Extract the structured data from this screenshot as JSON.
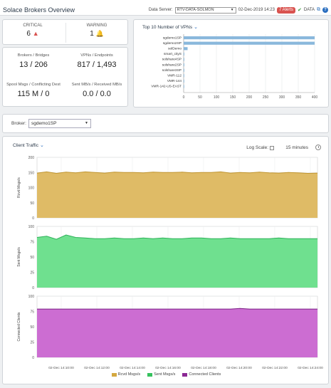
{
  "header": {
    "title": "Solace Brokers Overview",
    "data_server_label": "Data Server:",
    "data_server_value": "RTV-DATA-SOLMON",
    "timestamp": "02-Dec-2019 14:23",
    "alerts": "7 Alerts",
    "data_label": "DATA",
    "help": "?"
  },
  "alerts_panel": {
    "critical_label": "CRITICAL",
    "critical_value": "6",
    "warning_label": "WARNING",
    "warning_value": "1"
  },
  "stats": {
    "brokers_label": "Brokers / Bridges",
    "brokers_value": "13 / 206",
    "vpns_label": "VPNs / Endpoints",
    "vpns_value": "817 / 1,493",
    "spool_label": "Spool Msgs / Conflicting Dest",
    "spool_value": "115 M / 0",
    "sent_label": "Sent MB/s / Received MB/s",
    "sent_value": "0.0 / 0.0"
  },
  "vpn_panel": {
    "title": "Top 10 Number of VPNs"
  },
  "broker": {
    "label": "Broker:",
    "value": "sgdemo1SP"
  },
  "traffic": {
    "title": "Client Traffic",
    "log_scale_label": "Log Scale:",
    "time_range": "15 minutes"
  },
  "chart_data": [
    {
      "type": "bar",
      "orientation": "horizontal",
      "title": "Top 10 Number of VPNs",
      "categories": [
        "sgdemo1SP",
        "sgdemo2SP",
        "solDemo",
        "smart_cityS",
        "solshare4SP",
        "solshare2SP",
        "solshare3SP",
        "VMR-112",
        "VMR-144",
        "VMR-142-US-EAST"
      ],
      "values": [
        400,
        400,
        12,
        2,
        2,
        2,
        2,
        1,
        1,
        1
      ],
      "xlim": [
        0,
        400
      ],
      "xticks": [
        "0",
        "50",
        "100",
        "150",
        "200",
        "250",
        "300",
        "350",
        "400"
      ],
      "color": "#8ab8dc",
      "grid": true
    },
    {
      "type": "area",
      "ylabel": "Rcvd Msgs/s",
      "ylim": [
        0,
        200
      ],
      "yticks": [
        "200",
        "150",
        "100",
        "50",
        "0"
      ],
      "values": [
        148,
        152,
        147,
        151,
        149,
        152,
        150,
        148,
        151,
        150,
        150,
        149,
        151,
        150,
        150,
        151,
        149,
        150,
        150,
        152,
        148,
        150,
        149,
        151,
        149,
        148,
        150,
        149,
        147,
        148
      ],
      "color": "#dfbb66",
      "line": "#c09530"
    },
    {
      "type": "area",
      "ylabel": "Sent Msgs/s",
      "ylim": [
        0,
        100
      ],
      "yticks": [
        "100",
        "75",
        "50",
        "25",
        "0"
      ],
      "values": [
        82,
        84,
        79,
        86,
        82,
        81,
        80,
        80,
        81,
        80,
        80,
        81,
        80,
        81,
        80,
        80,
        81,
        81,
        80,
        80,
        81,
        80,
        80,
        80,
        80,
        81,
        80,
        80,
        80,
        80
      ],
      "color": "#6fe08f",
      "line": "#2fb25a"
    },
    {
      "type": "area",
      "ylabel": "Connected Clients",
      "ylim": [
        0,
        100
      ],
      "yticks": [
        "100",
        "75",
        "50",
        "25",
        "0"
      ],
      "values": [
        79,
        79,
        79,
        79,
        79,
        79,
        79,
        79,
        79,
        79,
        79,
        79,
        79,
        79,
        79,
        79,
        79,
        79,
        79,
        79,
        79,
        80,
        79,
        79,
        79,
        79,
        79,
        79,
        79,
        79
      ],
      "color": "#cc6dd2",
      "line": "#7a1f84"
    }
  ],
  "x_axis": {
    "ticks": [
      "02-Dec 14:10:00",
      "02-Dec 14:12:00",
      "02-Dec 14:14:00",
      "02-Dec 14:16:00",
      "02-Dec 14:18:00",
      "02-Dec 14:20:00",
      "02-Dec 14:22:00",
      "02-Dec 14:24:00"
    ]
  },
  "legend": [
    "Rcvd Msgs/s",
    "Sent Msgs/s",
    "Connected Clients"
  ]
}
